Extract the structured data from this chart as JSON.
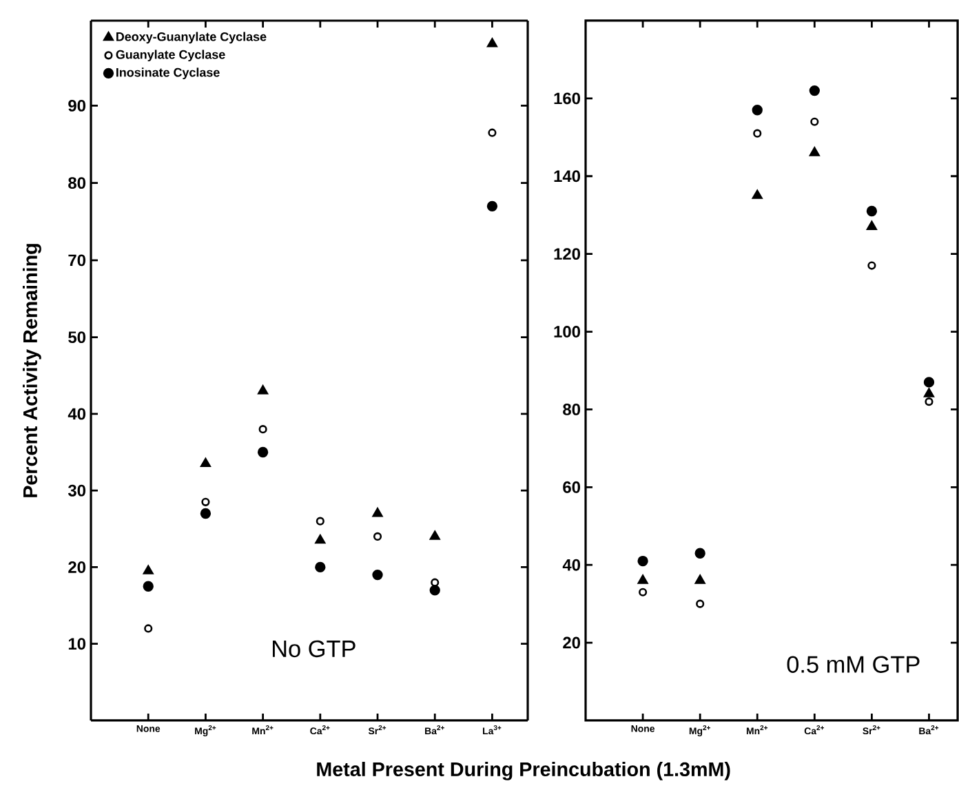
{
  "chart_data": [
    {
      "type": "scatter",
      "categories": [
        null,
        null,
        null,
        null,
        null,
        null,
        null
      ],
      "ylim": [
        65,
        101
      ],
      "yticks": [
        70,
        80,
        90
      ],
      "tick_labels": "y",
      "legend": "top left",
      "series": [
        {
          "name": "Deoxy-Guanylate Cyclase",
          "color": "#000000",
          "marker": "triangle",
          "values": [
            null,
            null,
            null,
            null,
            null,
            null,
            98
          ]
        },
        {
          "name": "Guanylate Cyclase",
          "color": "#000000",
          "marker": "open circle",
          "values": [
            null,
            null,
            null,
            null,
            null,
            null,
            86.5
          ]
        },
        {
          "name": "Inosinate Cyclase",
          "color": "#000000",
          "marker": "circle",
          "values": [
            null,
            null,
            null,
            null,
            null,
            null,
            77
          ]
        }
      ]
    },
    {
      "type": "scatter",
      "categories": [
        "None",
        "Mg$^{2+}$",
        "Mn$^{2+}$",
        "Ca$^{2+}$",
        "Sr$^{2+}$",
        "Ba$^{2+}$",
        "La$^{3+}$"
      ],
      "ylim": [
        0,
        55
      ],
      "yticks": [
        10,
        20,
        30,
        40,
        50
      ],
      "ylabel": "Percent Activity Remaining",
      "xlabel": "Metal Present During Preincubation (1.3mM)",
      "annotations": [
        "No GTP"
      ],
      "series": [
        {
          "color": "#000000",
          "marker": "triangle",
          "values": [
            19.5,
            33.5,
            43,
            23.5,
            27,
            24,
            null
          ]
        },
        {
          "color": "#000000",
          "marker": "open circle",
          "values": [
            12,
            28.5,
            38,
            26,
            24,
            18,
            null
          ]
        },
        {
          "color": "#000000",
          "marker": "circle",
          "values": [
            17.5,
            27,
            35,
            20,
            19,
            17,
            null
          ]
        }
      ]
    },
    {
      "type": "scatter",
      "categories": [
        "None",
        "Mg$^{2+}$",
        "Mn$^{2+}$",
        "Ca$^{2+}$",
        "Sr$^{2+}$",
        "Ba$^{2+}$"
      ],
      "ylim": [
        0,
        180
      ],
      "yticks": [
        20,
        40,
        60,
        80,
        100,
        120,
        140,
        160
      ],
      "annotations": [
        "0.5 mM GTP"
      ],
      "series": [
        {
          "color": "#000000",
          "marker": "triangle",
          "values": [
            36,
            36,
            135,
            146,
            127,
            84
          ]
        },
        {
          "color": "#000000",
          "marker": "open circle",
          "values": [
            33,
            30,
            151,
            154,
            117,
            82
          ]
        },
        {
          "color": "#000000",
          "marker": "circle",
          "values": [
            41,
            43,
            157,
            162,
            131,
            87
          ]
        }
      ]
    }
  ]
}
